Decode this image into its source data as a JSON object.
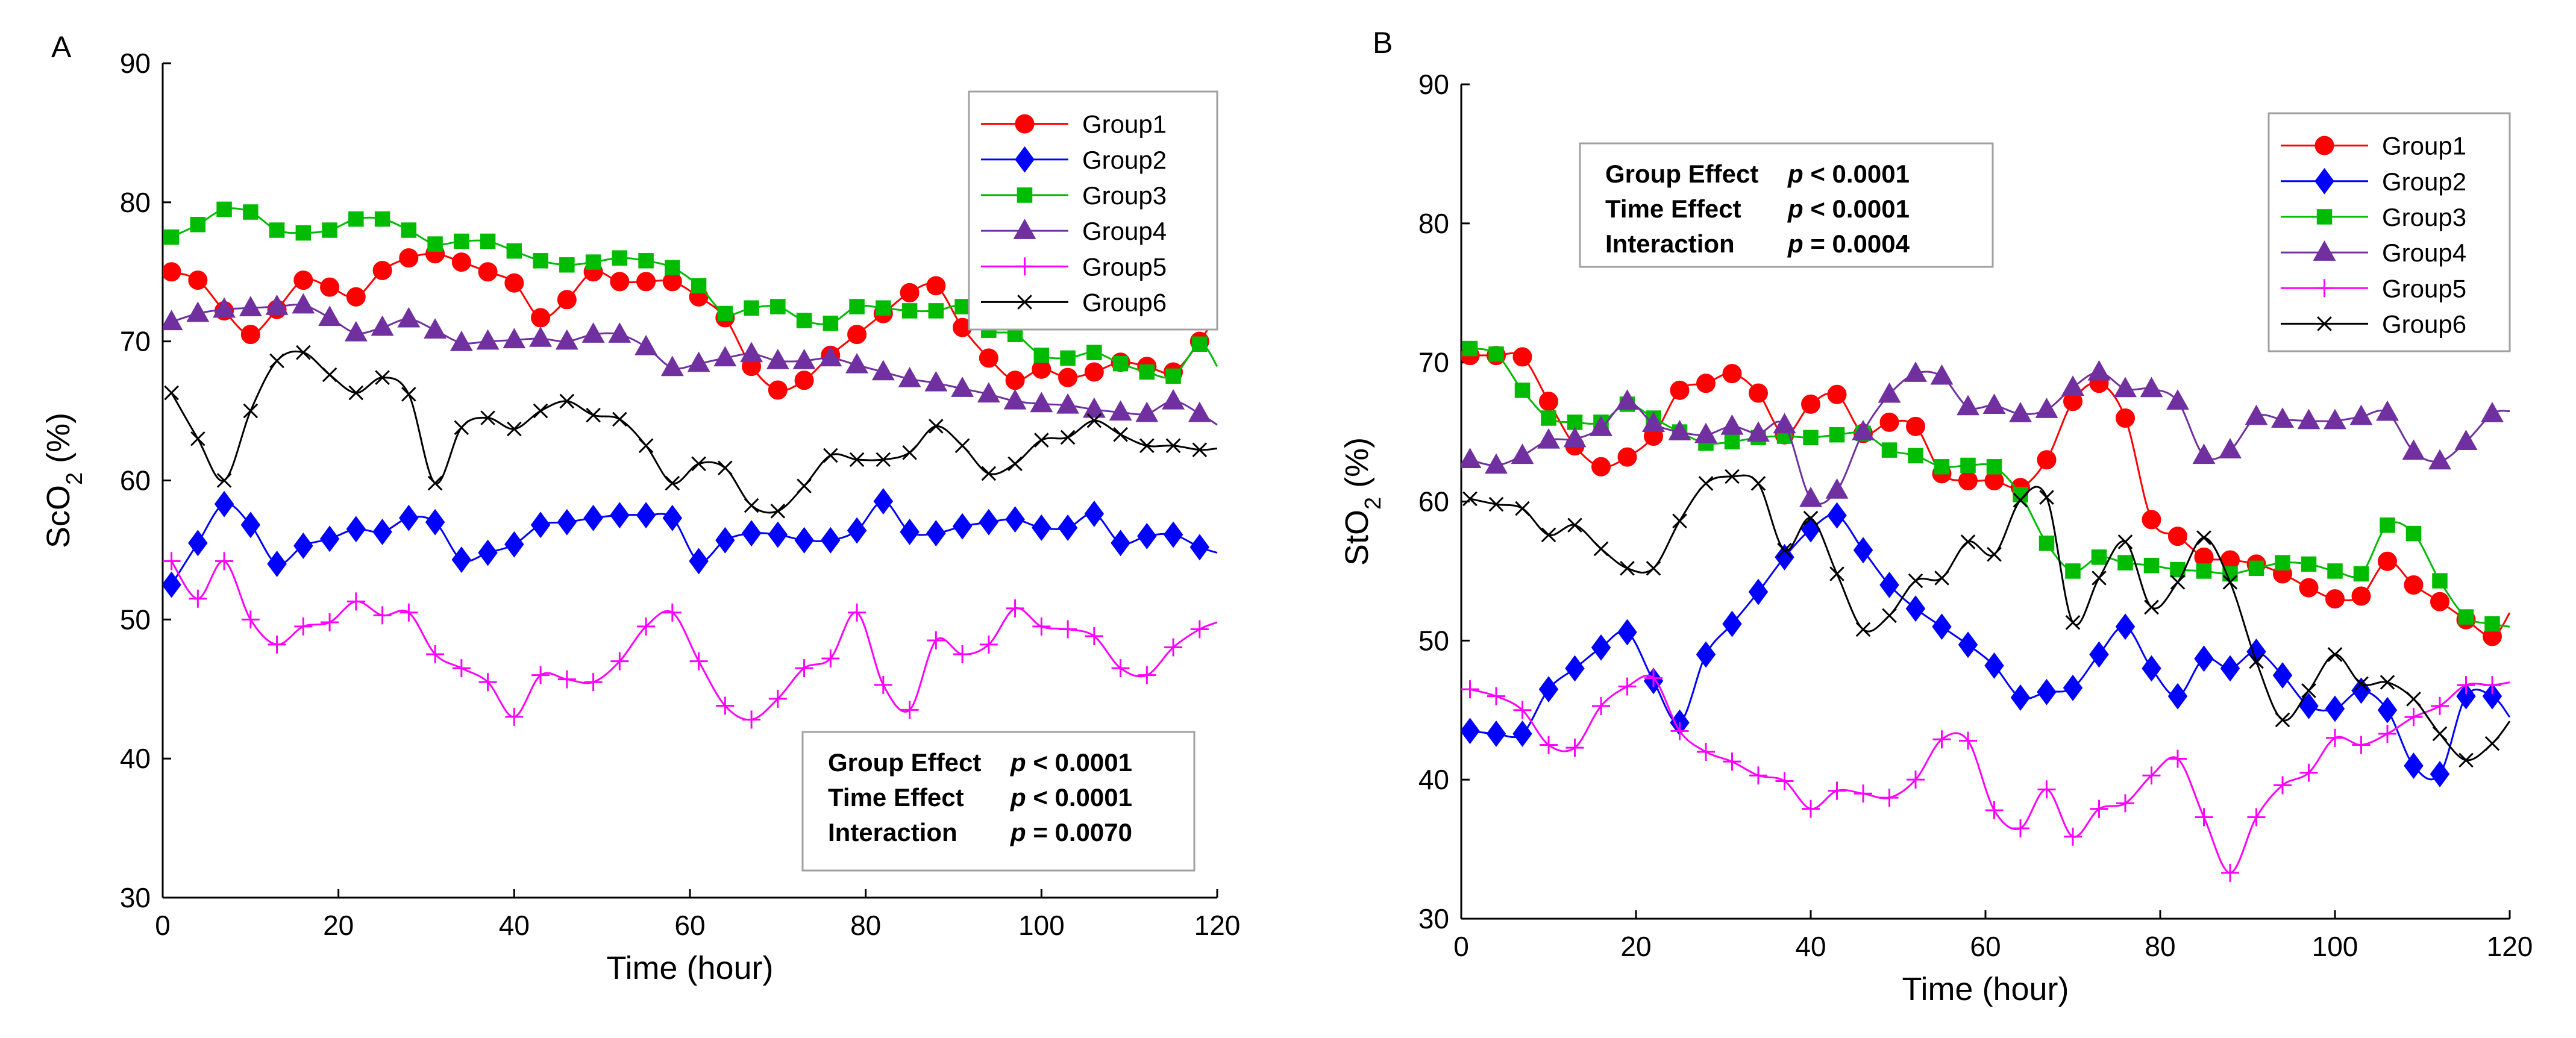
{
  "chart_data": [
    {
      "panel": "A",
      "type": "line",
      "xlabel": "Time (hour)",
      "ylabel_main": "ScO",
      "ylabel_sub": "2",
      "ylabel_tail": " (%)",
      "xlim": [
        0,
        120
      ],
      "ylim": [
        30,
        90
      ],
      "xticks": [
        0,
        20,
        40,
        60,
        80,
        100,
        120
      ],
      "yticks": [
        30,
        40,
        50,
        60,
        70,
        80,
        90
      ],
      "legend_position": "top-right",
      "stats_position": "bottom-right",
      "stats": [
        {
          "label": "Group Effect",
          "p": "p",
          "value": " < 0.0001"
        },
        {
          "label": "Time Effect",
          "p": "p",
          "value": " < 0.0001"
        },
        {
          "label": "Interaction",
          "p": "p",
          "value": " = 0.0070"
        }
      ],
      "x": [
        1,
        4,
        7,
        10,
        13,
        16,
        19,
        22,
        25,
        28,
        31,
        34,
        37,
        40,
        43,
        46,
        49,
        52,
        55,
        58,
        61,
        64,
        67,
        70,
        73,
        76,
        79,
        82,
        85,
        88,
        91,
        94,
        97,
        100,
        103,
        106,
        109,
        112,
        115,
        118
      ],
      "series": [
        {
          "name": "Group1",
          "color": "#ff0000",
          "marker": "circle",
          "end": [
            120,
            72
          ],
          "values": [
            75,
            74.4,
            72.2,
            70.5,
            72.3,
            74.4,
            73.9,
            73.2,
            75.1,
            76,
            76.3,
            75.7,
            75,
            74.2,
            71.7,
            73,
            75,
            74.3,
            74.3,
            74.3,
            73.2,
            71.7,
            68.2,
            66.5,
            67.2,
            69,
            70.5,
            72,
            73.5,
            74,
            71,
            68.8,
            67.2,
            68,
            67.4,
            67.8,
            68.5,
            68.2,
            67.8,
            70
          ]
        },
        {
          "name": "Group2",
          "color": "#0000ff",
          "marker": "diamond",
          "end": [
            120,
            54.8
          ],
          "values": [
            52.5,
            55.5,
            58.3,
            56.8,
            54,
            55.3,
            55.8,
            56.5,
            56.3,
            57.3,
            57,
            54.3,
            54.8,
            55.4,
            56.8,
            57,
            57.3,
            57.5,
            57.5,
            57.3,
            54.2,
            55.7,
            56.2,
            56.1,
            55.7,
            55.7,
            56.4,
            58.5,
            56.3,
            56.2,
            56.7,
            57,
            57.2,
            56.6,
            56.6,
            57.6,
            55.5,
            56,
            56.1,
            55.2
          ]
        },
        {
          "name": "Group3",
          "color": "#00bb00",
          "marker": "square",
          "end": [
            120,
            68.2
          ],
          "values": [
            77.5,
            78.4,
            79.5,
            79.3,
            78,
            77.8,
            78,
            78.8,
            78.8,
            78,
            77,
            77.2,
            77.2,
            76.5,
            75.8,
            75.5,
            75.7,
            76,
            75.8,
            75.3,
            74,
            72,
            72.4,
            72.5,
            71.5,
            71.3,
            72.5,
            72.4,
            72.2,
            72.2,
            72.5,
            70.8,
            70.5,
            69,
            68.8,
            69.2,
            68.4,
            67.8,
            67.5,
            69.8
          ]
        },
        {
          "name": "Group4",
          "color": "#7030a0",
          "marker": "triangle",
          "end": [
            120,
            64
          ],
          "values": [
            71.4,
            72,
            72.3,
            72.4,
            72.5,
            72.6,
            71.7,
            70.6,
            71,
            71.6,
            70.8,
            69.9,
            70,
            70.1,
            70.2,
            70,
            70.5,
            70.5,
            69.6,
            68.1,
            68.4,
            68.8,
            69.1,
            68.6,
            68.6,
            68.8,
            68.3,
            67.8,
            67.3,
            67,
            66.6,
            66.2,
            65.7,
            65.5,
            65.4,
            65.1,
            64.9,
            64.8,
            65.7,
            64.8
          ]
        },
        {
          "name": "Group5",
          "color": "#ff00ff",
          "marker": "plus",
          "end": [
            120,
            49.8
          ],
          "values": [
            54.2,
            51.5,
            54.2,
            50,
            48.2,
            49.5,
            49.8,
            51.3,
            50.3,
            50.5,
            47.5,
            46.5,
            45.5,
            43,
            46,
            45.7,
            45.5,
            47,
            49.5,
            50.5,
            47,
            43.8,
            42.8,
            44.3,
            46.5,
            47.2,
            50.5,
            45.3,
            43.5,
            48.5,
            47.5,
            48.2,
            50.8,
            49.5,
            49.3,
            48.8,
            46.5,
            46,
            48,
            49.3
          ]
        },
        {
          "name": "Group6",
          "color": "#000000",
          "marker": "x",
          "end": [
            120,
            62.3
          ],
          "values": [
            66.3,
            63,
            60,
            65,
            68.6,
            69.2,
            67.6,
            66.3,
            67.4,
            66.2,
            59.8,
            63.8,
            64.5,
            63.7,
            65,
            65.7,
            64.7,
            64.4,
            62.5,
            59.8,
            61.2,
            60.9,
            58.2,
            57.8,
            59.6,
            61.8,
            61.5,
            61.5,
            62,
            63.9,
            62.5,
            60.5,
            61.2,
            62.9,
            63.1,
            64.3,
            63.3,
            62.5,
            62.5,
            62.2
          ]
        }
      ]
    },
    {
      "panel": "B",
      "type": "line",
      "xlabel": "Time (hour)",
      "ylabel_main": "StO",
      "ylabel_sub": "2",
      "ylabel_tail": " (%)",
      "xlim": [
        0,
        120
      ],
      "ylim": [
        30,
        90
      ],
      "xticks": [
        0,
        20,
        40,
        60,
        80,
        100,
        120
      ],
      "yticks": [
        30,
        40,
        50,
        60,
        70,
        80,
        90
      ],
      "legend_position": "top-right",
      "stats_position": "top-left",
      "stats": [
        {
          "label": "Group Effect",
          "p": "p",
          "value": " < 0.0001"
        },
        {
          "label": "Time Effect",
          "p": "p",
          "value": " < 0.0001"
        },
        {
          "label": "Interaction",
          "p": "p",
          "value": " = 0.0004"
        }
      ],
      "x": [
        1,
        4,
        7,
        10,
        13,
        16,
        19,
        22,
        25,
        28,
        31,
        34,
        37,
        40,
        43,
        46,
        49,
        52,
        55,
        58,
        61,
        64,
        67,
        70,
        73,
        76,
        79,
        82,
        85,
        88,
        91,
        94,
        97,
        100,
        103,
        106,
        109,
        112,
        115,
        118
      ],
      "series": [
        {
          "name": "Group1",
          "color": "#ff0000",
          "marker": "circle",
          "end": [
            120,
            52
          ],
          "values": [
            70.5,
            70.5,
            70.4,
            67.2,
            64,
            62.5,
            63.2,
            64.7,
            68,
            68.5,
            69.2,
            67.8,
            64.8,
            67,
            67.7,
            64.9,
            65.7,
            65.4,
            62,
            61.5,
            61.5,
            61,
            63,
            67.2,
            68.5,
            66,
            58.7,
            57.5,
            56,
            55.8,
            55.5,
            54.8,
            53.8,
            53,
            53.2,
            55.7,
            54,
            52.8,
            51.5,
            50.3
          ]
        },
        {
          "name": "Group2",
          "color": "#0000ff",
          "marker": "diamond",
          "end": [
            120,
            44.5
          ],
          "values": [
            43.5,
            43.3,
            43.3,
            46.5,
            48,
            49.5,
            50.6,
            47.1,
            44.1,
            49,
            51.2,
            53.5,
            56,
            58,
            59,
            56.5,
            54,
            52.3,
            51,
            49.7,
            48.2,
            45.9,
            46.3,
            46.6,
            49,
            51,
            48,
            46,
            48.7,
            48,
            49.2,
            47.5,
            45.3,
            45.1,
            46.4,
            45,
            41,
            40.4,
            46,
            46
          ]
        },
        {
          "name": "Group3",
          "color": "#00bb00",
          "marker": "square",
          "end": [
            120,
            51
          ],
          "values": [
            71,
            70.6,
            68,
            66,
            65.7,
            65.7,
            67,
            66,
            65,
            64.2,
            64.3,
            64.6,
            64.7,
            64.6,
            64.8,
            64.9,
            63.7,
            63.3,
            62.5,
            62.6,
            62.5,
            60.5,
            57,
            55,
            56,
            55.6,
            55.4,
            55.1,
            55,
            54.8,
            55.2,
            55.6,
            55.5,
            55,
            54.8,
            58.3,
            57.7,
            54.3,
            51.7,
            51.2
          ]
        },
        {
          "name": "Group4",
          "color": "#7030a0",
          "marker": "triangle",
          "end": [
            120,
            66.5
          ],
          "values": [
            63,
            62.6,
            63.3,
            64.4,
            64.5,
            65.3,
            67.2,
            65.6,
            65,
            64.8,
            65.4,
            64.9,
            65.5,
            60.2,
            60.8,
            65,
            67.7,
            69.2,
            69,
            66.8,
            66.9,
            66.3,
            66.6,
            68.2,
            69.3,
            68.1,
            68.1,
            67.2,
            63.3,
            63.7,
            66.1,
            65.9,
            65.8,
            65.8,
            66.1,
            66.4,
            63.6,
            62.9,
            64.3,
            66.3
          ]
        },
        {
          "name": "Group5",
          "color": "#ff00ff",
          "marker": "plus",
          "end": [
            120,
            47
          ],
          "values": [
            46.5,
            46,
            45,
            42.5,
            42.3,
            45.3,
            46.7,
            47.3,
            43.5,
            42,
            41.3,
            40.3,
            39.9,
            37.9,
            39.2,
            39,
            38.7,
            40,
            42.9,
            42.8,
            37.8,
            36.5,
            39.3,
            35.9,
            37.9,
            38.3,
            40.3,
            41.5,
            37.3,
            33.3,
            37.3,
            39.6,
            40.5,
            43,
            42.5,
            43.3,
            44.5,
            45.3,
            46.8,
            46.8
          ]
        },
        {
          "name": "Group6",
          "color": "#000000",
          "marker": "x",
          "end": [
            120,
            44.2
          ],
          "values": [
            60.2,
            59.8,
            59.5,
            57.6,
            58.3,
            56.6,
            55.2,
            55.2,
            58.6,
            61.3,
            61.8,
            61.3,
            56.5,
            58.8,
            54.8,
            50.8,
            51.8,
            54.3,
            54.5,
            57.1,
            56.2,
            60.1,
            60.3,
            51.3,
            54.5,
            57.1,
            52.4,
            54.2,
            57.4,
            54.2,
            48.5,
            44.3,
            46.4,
            49,
            46.9,
            47,
            45.8,
            43.3,
            41.4,
            42.6
          ]
        }
      ]
    }
  ]
}
